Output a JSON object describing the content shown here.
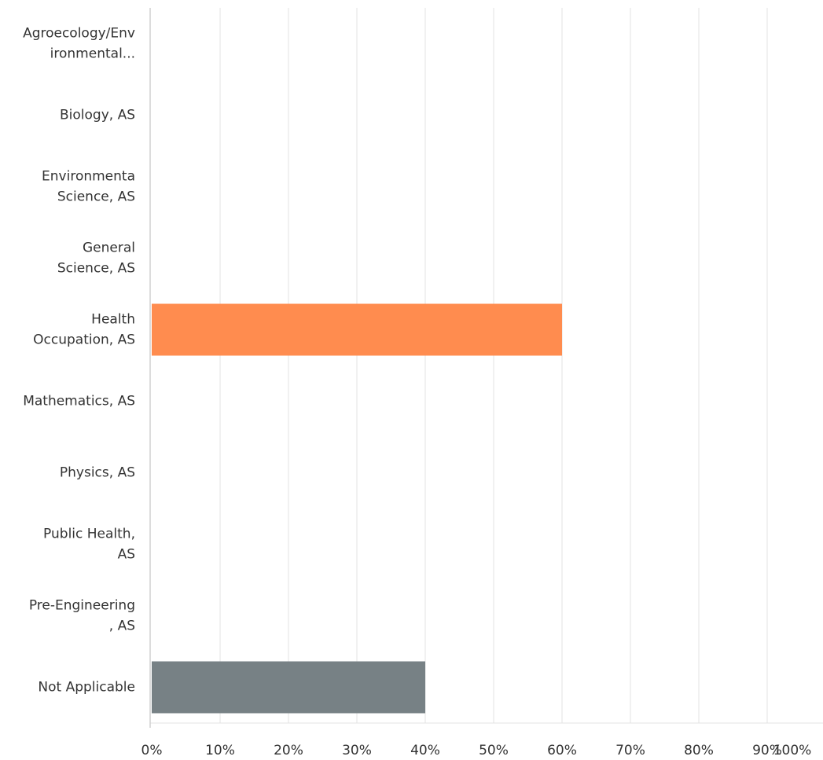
{
  "chart_data": {
    "type": "hbar",
    "categories": [
      [
        "Agroecology/Env",
        "ironmental..."
      ],
      [
        "Biology, AS"
      ],
      [
        "Environmenta",
        "Science, AS"
      ],
      [
        "General",
        "Science, AS"
      ],
      [
        "Health",
        "Occupation, AS"
      ],
      [
        "Mathematics, AS"
      ],
      [
        "Physics, AS"
      ],
      [
        "Public Health,",
        "AS"
      ],
      [
        "Pre-Engineering",
        ", AS"
      ],
      [
        "Not Applicable"
      ]
    ],
    "values": [
      0,
      0,
      0,
      0,
      60,
      0,
      0,
      0,
      0,
      40
    ],
    "colors": [
      "#ff8c4f",
      "#ff8c4f",
      "#ff8c4f",
      "#ff8c4f",
      "#ff8c4f",
      "#ff8c4f",
      "#ff8c4f",
      "#ff8c4f",
      "#ff8c4f",
      "#778185"
    ],
    "xlim": [
      0,
      100
    ],
    "xticks": [
      {
        "value": 0,
        "label": "0%"
      },
      {
        "value": 10,
        "label": "10%"
      },
      {
        "value": 20,
        "label": "20%"
      },
      {
        "value": 30,
        "label": "30%"
      },
      {
        "value": 40,
        "label": "40%"
      },
      {
        "value": 50,
        "label": "50%"
      },
      {
        "value": 60,
        "label": "60%"
      },
      {
        "value": 70,
        "label": "70%"
      },
      {
        "value": 80,
        "label": "80%"
      },
      {
        "value": 90,
        "label": "90%"
      },
      {
        "value": 100,
        "label": "100%"
      }
    ],
    "grid": true
  }
}
